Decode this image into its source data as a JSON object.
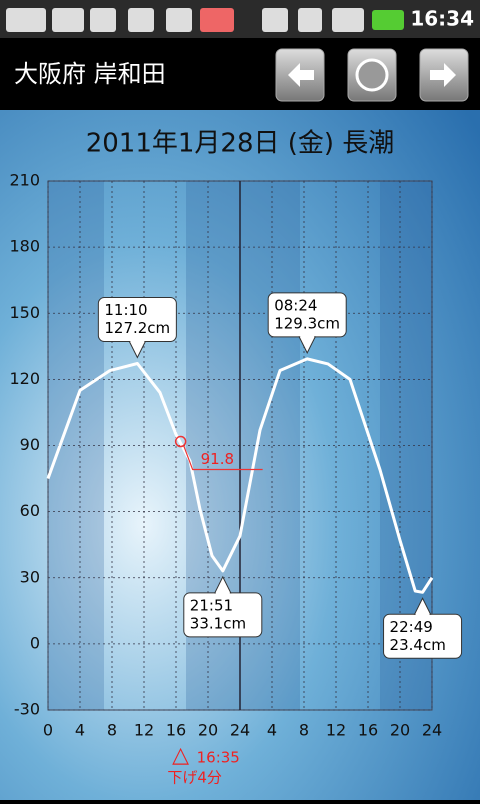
{
  "status_bar": {
    "time": "16:34"
  },
  "header": {
    "title": "大阪府 岸和田"
  },
  "chart_data": {
    "type": "line",
    "title": "2011年1月28日 (金) 長潮",
    "x": [
      0,
      4,
      7.75,
      11.17,
      14,
      16,
      17.75,
      19,
      20.5,
      21.85,
      24,
      26.5,
      29,
      32.4,
      35,
      37.75,
      41.5,
      44,
      45.9,
      46.82,
      48
    ],
    "values": [
      75,
      115,
      124,
      127.2,
      114,
      95,
      83,
      61,
      40,
      33.1,
      49,
      97,
      124,
      129.3,
      127,
      120,
      79,
      47,
      24,
      23.4,
      30
    ],
    "color": "#ffffff",
    "xlim": [
      0,
      48
    ],
    "xticks": [
      0,
      4,
      8,
      12,
      16,
      20,
      24,
      {
        "value": 28,
        "label": "4"
      },
      {
        "value": 32,
        "label": "8"
      },
      {
        "value": 36,
        "label": "12"
      },
      {
        "value": 40,
        "label": "16"
      },
      {
        "value": 44,
        "label": "20"
      },
      {
        "value": 48,
        "label": "24"
      }
    ],
    "ylim": [
      -30,
      210
    ],
    "yticks": [
      -30,
      0,
      30,
      60,
      90,
      120,
      150,
      180,
      210
    ],
    "grid": true,
    "annotations": [
      {
        "x": 11.17,
        "value": 127.2,
        "time": "11:10",
        "label": "127.2cm"
      },
      {
        "x": 21.85,
        "value": 33.1,
        "time": "21:51",
        "label": "33.1cm"
      },
      {
        "x": 32.4,
        "value": 129.3,
        "time": "08:24",
        "label": "129.3cm"
      },
      {
        "x": 46.82,
        "value": 23.4,
        "time": "22:49",
        "label": "23.4cm"
      }
    ],
    "current": {
      "x": 16.58,
      "value": 91.8,
      "symbol": "△",
      "time": "16:35",
      "note": "下げ4分"
    }
  }
}
